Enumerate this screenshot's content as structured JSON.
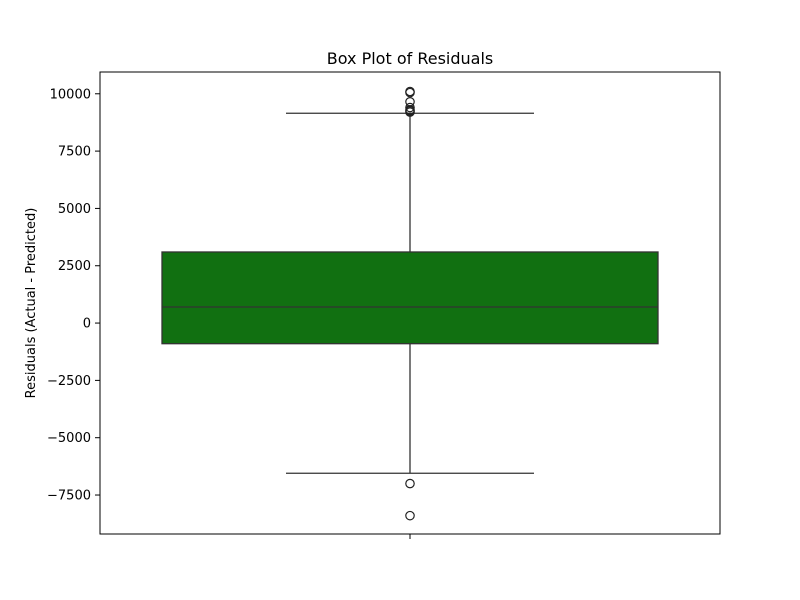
{
  "chart_data": {
    "type": "box",
    "title": "Box Plot of Residuals",
    "xlabel": "",
    "ylabel": "Residuals (Actual - Predicted)",
    "ylim": [
      -9200,
      10950
    ],
    "yticks": [
      10000,
      7500,
      5000,
      2500,
      0,
      -2500,
      -5000,
      -7500
    ],
    "ytick_labels": [
      "10000",
      "7500",
      "5000",
      "2500",
      "0",
      "−2500",
      "−5000",
      "−7500"
    ],
    "grid": false,
    "box": {
      "whisker_low": -6550,
      "q1": -900,
      "median": 700,
      "q3": 3100,
      "whisker_high": 9150,
      "outliers": [
        10100,
        10050,
        9650,
        9400,
        9300,
        9250,
        9200,
        -7000,
        -8400
      ],
      "fill_color": "#117011",
      "line_color": "#333333"
    }
  }
}
